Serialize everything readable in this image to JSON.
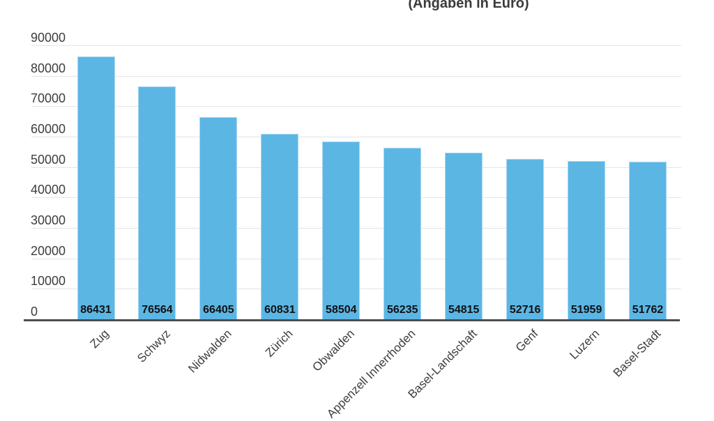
{
  "page": {
    "background": "#ffffff"
  },
  "chart_data": {
    "type": "bar",
    "title": "(Angaben in Euro)",
    "categories": [
      "Zug",
      "Schwyz",
      "Nidwalden",
      "Zürich",
      "Obwalden",
      "Appenzell Innerrhoden",
      "Basel-Landschaft",
      "Genf",
      "Luzern",
      "Basel-Stadt"
    ],
    "values": [
      86431,
      76564,
      66405,
      60831,
      58504,
      56235,
      54815,
      52716,
      51959,
      51762
    ],
    "value_labels": [
      "86431",
      "76564",
      "66405",
      "60831",
      "58504",
      "56235",
      "54815",
      "52716",
      "51959",
      "51762"
    ],
    "xlabel": "",
    "ylabel": "",
    "ylim": [
      0,
      90000
    ],
    "yticks": [
      0,
      10000,
      20000,
      30000,
      40000,
      50000,
      60000,
      70000,
      80000,
      90000
    ],
    "grid": "horizontal",
    "legend": "none",
    "x_label_rotation_deg": 45
  },
  "colors": {
    "bar_fill": "#5bb6e4",
    "bar_stroke": "#a9d8f2",
    "gridline": "#e4e4e4",
    "axis_line": "#4d4d4d",
    "tick_text": "#3d3d3d",
    "value_text": "#111111",
    "title_text": "#3b3b3b"
  }
}
